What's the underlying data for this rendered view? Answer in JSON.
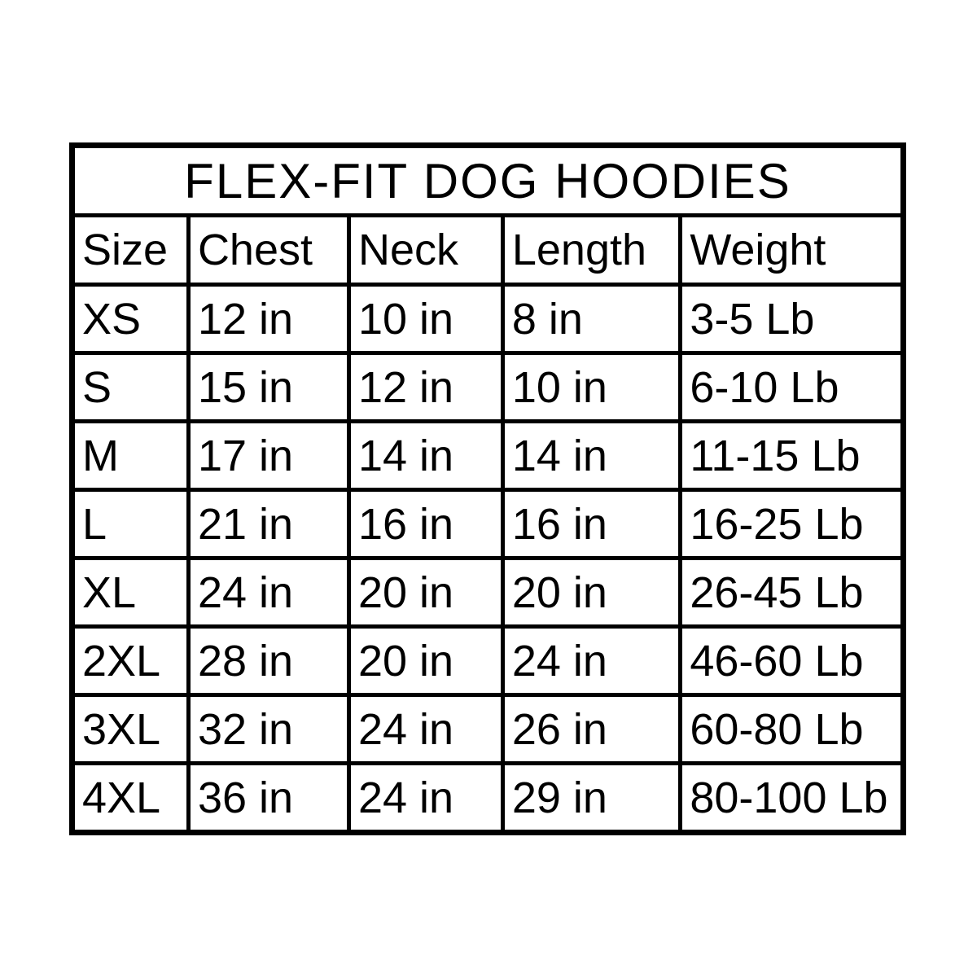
{
  "chart_data": {
    "type": "table",
    "title": "FLEX-FIT DOG HOODIES",
    "columns": [
      "Size",
      "Chest",
      "Neck",
      "Length",
      "Weight"
    ],
    "rows": [
      [
        "XS",
        "12 in",
        "10 in",
        "8 in",
        "3-5 Lb"
      ],
      [
        "S",
        "15 in",
        "12 in",
        "10 in",
        "6-10 Lb"
      ],
      [
        "M",
        "17 in",
        "14 in",
        "14 in",
        "11-15 Lb"
      ],
      [
        "L",
        "21 in",
        "16 in",
        "16 in",
        "16-25 Lb"
      ],
      [
        "XL",
        "24 in",
        "20 in",
        "20 in",
        "26-45 Lb"
      ],
      [
        "2XL",
        "28 in",
        "20 in",
        "24 in",
        "46-60 Lb"
      ],
      [
        "3XL",
        "32 in",
        "24 in",
        "26 in",
        "60-80 Lb"
      ],
      [
        "4XL",
        "36 in",
        "24 in",
        "29 in",
        "80-100 Lb"
      ]
    ]
  },
  "colors": {
    "background": "#ffffff",
    "border": "#000000",
    "text": "#000000"
  }
}
